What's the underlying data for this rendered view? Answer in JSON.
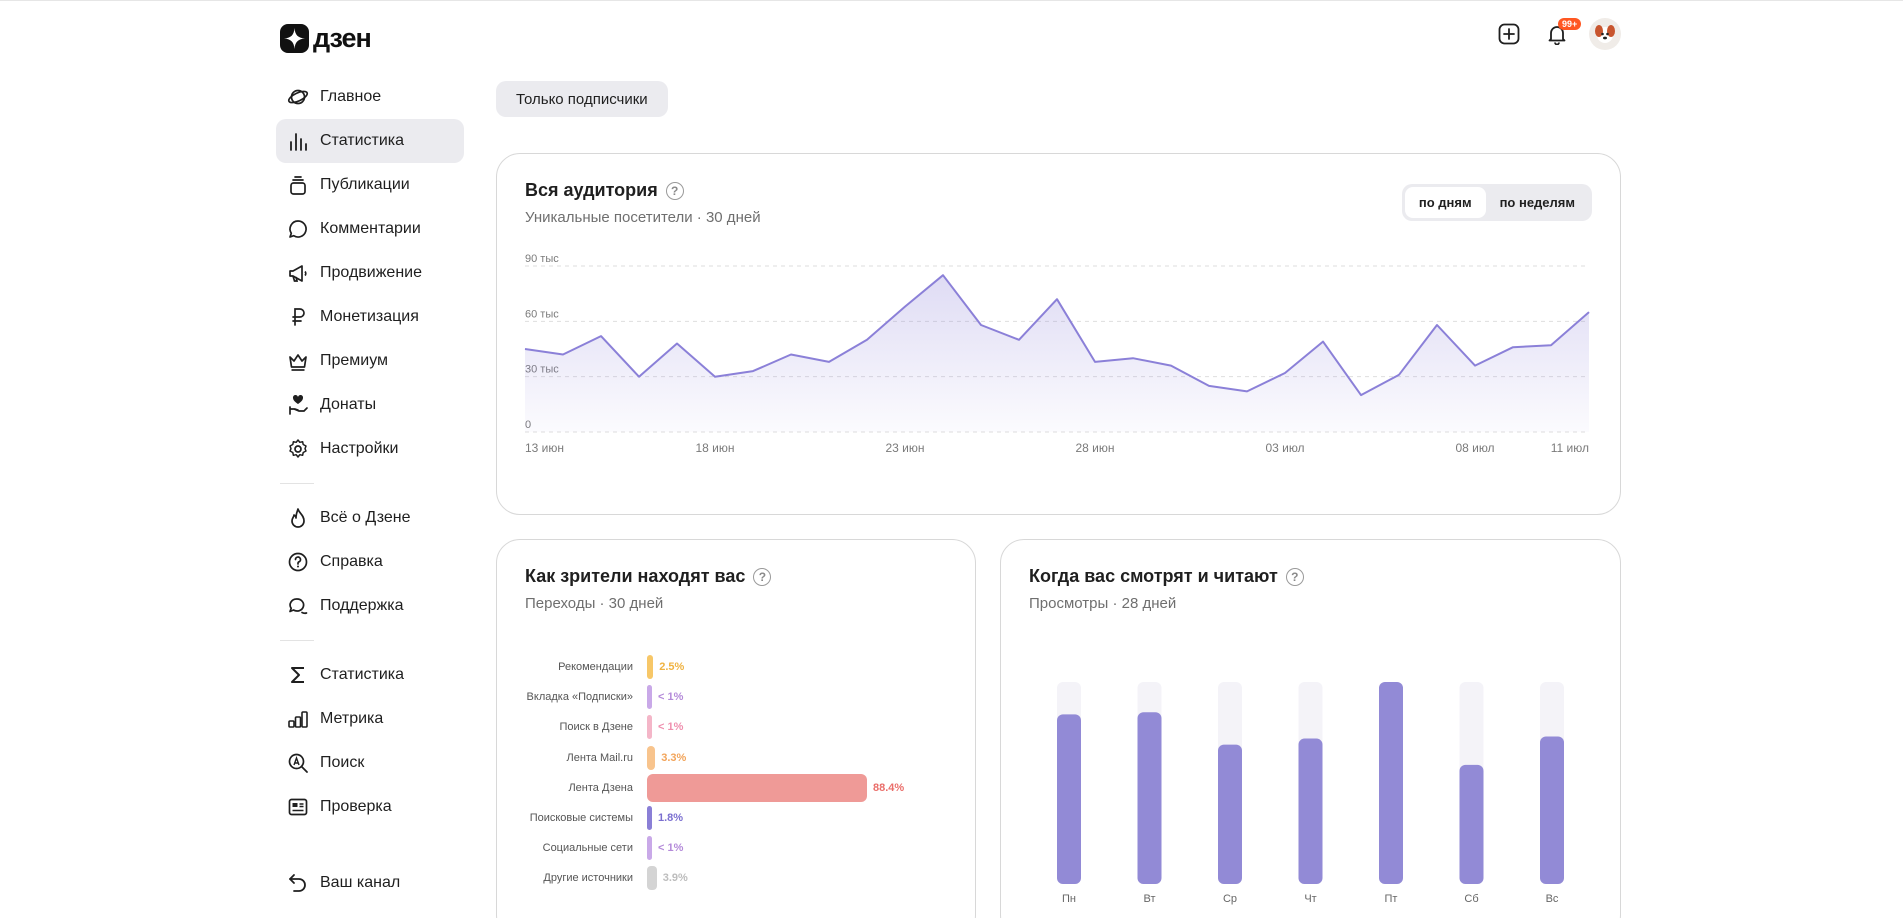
{
  "app": {
    "logo_text": "дзен"
  },
  "header": {
    "notifications_badge": "99+"
  },
  "sidebar": {
    "main": [
      {
        "label": "Главное",
        "icon": "planet-icon"
      },
      {
        "label": "Статистика",
        "icon": "bar-stats-icon",
        "active": true
      },
      {
        "label": "Публикации",
        "icon": "stack-icon"
      },
      {
        "label": "Комментарии",
        "icon": "comment-icon"
      },
      {
        "label": "Продвижение",
        "icon": "megaphone-icon"
      },
      {
        "label": "Монетизация",
        "icon": "ruble-icon"
      },
      {
        "label": "Премиум",
        "icon": "crown-icon"
      },
      {
        "label": "Донаты",
        "icon": "donate-icon"
      },
      {
        "label": "Настройки",
        "icon": "gear-icon"
      }
    ],
    "info": [
      {
        "label": "Всё о Дзене",
        "icon": "flame-icon"
      },
      {
        "label": "Справка",
        "icon": "help-icon"
      },
      {
        "label": "Поддержка",
        "icon": "chat-icon"
      }
    ],
    "tools": [
      {
        "label": "Статистика",
        "icon": "sigma-icon"
      },
      {
        "label": "Метрика",
        "icon": "metrika-icon"
      },
      {
        "label": "Поиск",
        "icon": "search-icon"
      },
      {
        "label": "Проверка",
        "icon": "check-card-icon"
      }
    ],
    "bottom": {
      "label": "Ваш канал",
      "icon": "back-arrow-icon"
    }
  },
  "filter_chip": "Только подписчики",
  "audience": {
    "title": "Вся аудитория",
    "subtitle": "Уникальные посетители · 30 дней",
    "toggle": [
      "по дням",
      "по неделям"
    ],
    "toggle_active": 0,
    "ytick_labels": [
      "90 тыс",
      "60 тыс",
      "30 тыс",
      "0"
    ],
    "xtick_labels": [
      "13 июн",
      "18 июн",
      "23 июн",
      "28 июн",
      "03 июл",
      "08 июл",
      "11 июл"
    ],
    "accent": "#8b80d8"
  },
  "sources": {
    "title": "Как зрители находят вас",
    "subtitle": "Переходы · 30 дней",
    "rows": [
      {
        "label": "Рекомендации",
        "value": "2.5%",
        "pct": 2.5,
        "color": "#f7c768",
        "text_color": "#f0b341"
      },
      {
        "label": "Вкладка «Подписки»",
        "value": "< 1%",
        "pct": 0.5,
        "color": "#c9a9e8",
        "text_color": "#b48ad9"
      },
      {
        "label": "Поиск в Дзене",
        "value": "< 1%",
        "pct": 0.5,
        "color": "#f4b6c8",
        "text_color": "#ef8fae"
      },
      {
        "label": "Лента Mail.ru",
        "value": "3.3%",
        "pct": 3.3,
        "color": "#f8c48d",
        "text_color": "#f2a45a"
      },
      {
        "label": "Лента Дзена",
        "value": "88.4%",
        "pct": 88.4,
        "color": "#ef9a97",
        "text_color": "#ea6e6a"
      },
      {
        "label": "Поисковые системы",
        "value": "1.8%",
        "pct": 1.8,
        "color": "#8a7fd6",
        "text_color": "#7b6fd0"
      },
      {
        "label": "Социальные сети",
        "value": "< 1%",
        "pct": 0.5,
        "color": "#c9a9e8",
        "text_color": "#b48ad9"
      },
      {
        "label": "Другие источники",
        "value": "3.9%",
        "pct": 3.9,
        "color": "#d4d4d4",
        "text_color": "#bdbdbd"
      }
    ]
  },
  "when": {
    "title": "Когда вас смотрят и читают",
    "subtitle": "Просмотры · 28 дней",
    "days": [
      "Пн",
      "Вт",
      "Ср",
      "Чт",
      "Пт",
      "Сб",
      "Вс"
    ],
    "levels": [
      0.84,
      0.85,
      0.69,
      0.72,
      1.0,
      0.59,
      0.73
    ],
    "bar_color": "#928ad6",
    "track_color": "#f4f3f8"
  },
  "chart_data": [
    {
      "type": "area",
      "title": "Вся аудитория",
      "x": [
        "13 июн",
        "14 июн",
        "15 июн",
        "16 июн",
        "17 июн",
        "18 июн",
        "19 июн",
        "20 июн",
        "21 июн",
        "22 июн",
        "23 июн",
        "24 июн",
        "25 июн",
        "26 июн",
        "27 июн",
        "28 июн",
        "29 июн",
        "30 июн",
        "01 июл",
        "02 июл",
        "03 июл",
        "04 июл",
        "05 июл",
        "06 июл",
        "07 июл",
        "08 июл",
        "09 июл",
        "10 июл",
        "11 июл"
      ],
      "series": [
        {
          "values": [
            45000,
            42000,
            52000,
            30000,
            48000,
            30000,
            33000,
            42000,
            38000,
            50000,
            68000,
            85000,
            58000,
            50000,
            72000,
            38000,
            40000,
            36000,
            25000,
            22000,
            32000,
            49000,
            20000,
            31000,
            58000,
            36000,
            46000,
            47000,
            65000
          ]
        }
      ],
      "ylim": [
        0,
        90000
      ],
      "yticks": [
        "0",
        "30 тыс",
        "60 тыс",
        "90 тыс"
      ],
      "grid": true
    },
    {
      "type": "bar",
      "title": "Как зрители находят вас",
      "categories": [
        "Рекомендации",
        "Вкладка «Подписки»",
        "Поиск в Дзене",
        "Лента Mail.ru",
        "Лента Дзена",
        "Поисковые системы",
        "Социальные сети",
        "Другие источники"
      ],
      "values": [
        2.5,
        0.5,
        0.5,
        3.3,
        88.4,
        1.8,
        0.5,
        3.9
      ]
    },
    {
      "type": "bar",
      "title": "Когда вас смотрят и читают",
      "categories": [
        "Пн",
        "Вт",
        "Ср",
        "Чт",
        "Пт",
        "Сб",
        "Вс"
      ],
      "values": [
        0.84,
        0.85,
        0.69,
        0.72,
        1.0,
        0.59,
        0.73
      ]
    }
  ]
}
